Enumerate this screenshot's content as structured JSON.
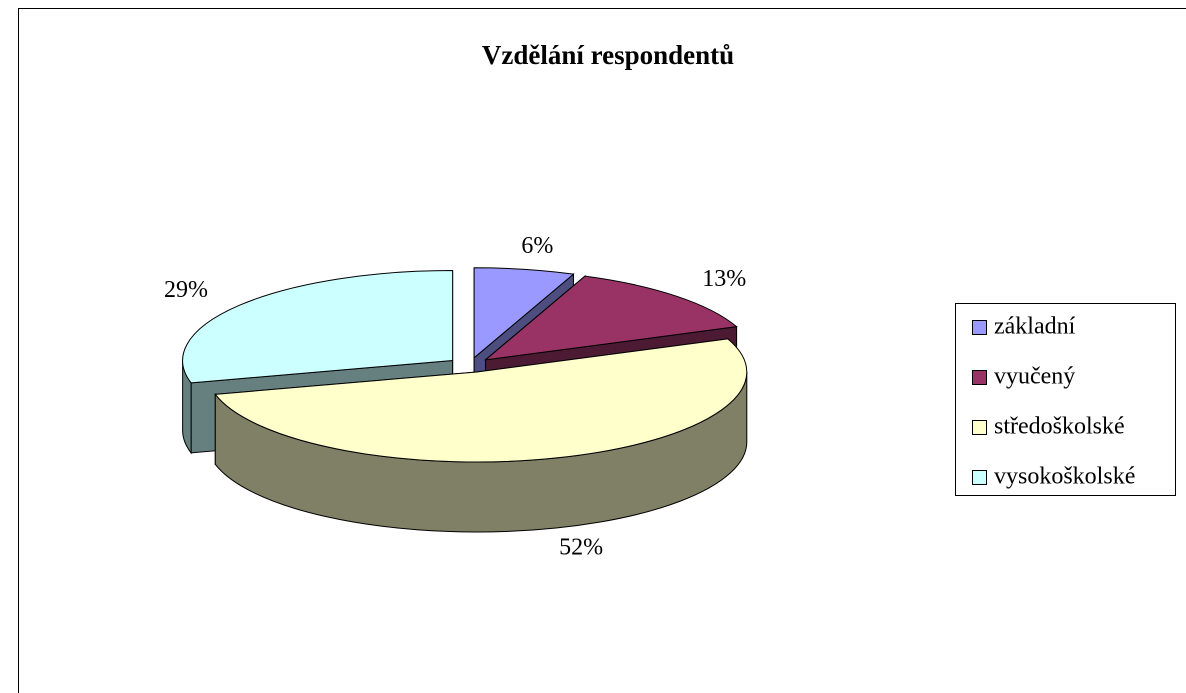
{
  "chart_data": {
    "type": "pie",
    "title": "Vzdělání respondentů",
    "categories": [
      "základní",
      "vyučený",
      "středoškolské",
      "vysokoškolské"
    ],
    "values": [
      6,
      13,
      52,
      29
    ],
    "value_labels": [
      "6%",
      "13%",
      "52%",
      "29%"
    ],
    "colors": [
      "#9999ff",
      "#993366",
      "#ffffcc",
      "#ccffff"
    ],
    "legend": "right"
  }
}
